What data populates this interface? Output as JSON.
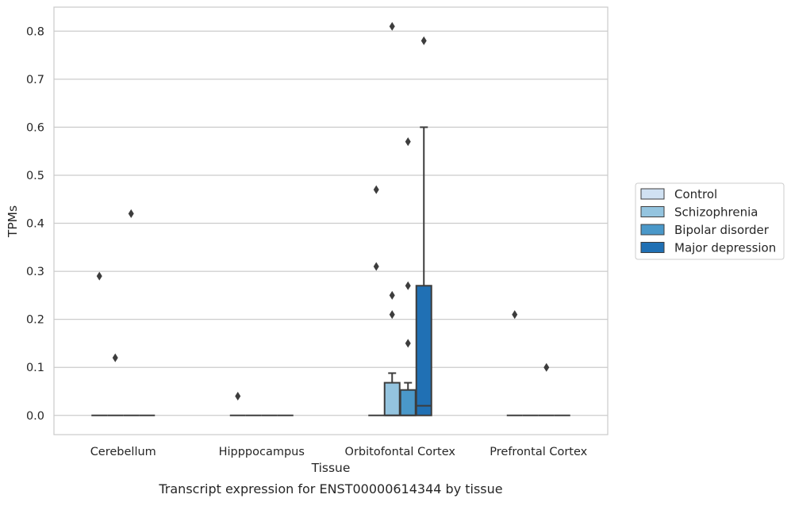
{
  "caption": "Transcript expression for ENST00000614344 by tissue",
  "chart_data": {
    "type": "box",
    "xlabel": "Tissue",
    "ylabel": "TPMs",
    "ylim": [
      -0.04,
      0.85
    ],
    "yticks": [
      0.0,
      0.1,
      0.2,
      0.3,
      0.4,
      0.5,
      0.6,
      0.7,
      0.8
    ],
    "ytick_labels": [
      "0.0",
      "0.1",
      "0.2",
      "0.3",
      "0.4",
      "0.5",
      "0.6",
      "0.7",
      "0.8"
    ],
    "categories": [
      "Cerebellum",
      "Hipppocampus",
      "Orbitofontal Cortex",
      "Prefrontal Cortex"
    ],
    "grid": "horizontal",
    "legend_position": "right",
    "legend": [
      "Control",
      "Schizophrenia",
      "Bipolar disorder",
      "Major depression"
    ],
    "colors": [
      "#d0e1f2",
      "#94c4df",
      "#4a98c9",
      "#2070b4"
    ],
    "edge_color": "#3d3d3d",
    "series": [
      {
        "name": "Control",
        "boxes": [
          {
            "q1": 0.0,
            "median": 0.0,
            "q3": 0.0,
            "whislo": 0.0,
            "whishi": 0.0,
            "fliers": [
              0.29
            ]
          },
          {
            "q1": 0.0,
            "median": 0.0,
            "q3": 0.0,
            "whislo": 0.0,
            "whishi": 0.0,
            "fliers": [
              0.04
            ]
          },
          {
            "q1": 0.0,
            "median": 0.0,
            "q3": 0.0,
            "whislo": 0.0,
            "whishi": 0.0,
            "fliers": [
              0.47,
              0.31
            ]
          },
          {
            "q1": 0.0,
            "median": 0.0,
            "q3": 0.0,
            "whislo": 0.0,
            "whishi": 0.0,
            "fliers": [
              0.21
            ]
          }
        ]
      },
      {
        "name": "Schizophrenia",
        "boxes": [
          {
            "q1": 0.0,
            "median": 0.0,
            "q3": 0.0,
            "whislo": 0.0,
            "whishi": 0.0,
            "fliers": [
              0.12
            ]
          },
          {
            "q1": 0.0,
            "median": 0.0,
            "q3": 0.0,
            "whislo": 0.0,
            "whishi": 0.0,
            "fliers": []
          },
          {
            "q1": 0.0,
            "median": 0.0,
            "q3": 0.068,
            "whislo": 0.0,
            "whishi": 0.088,
            "fliers": [
              0.81,
              0.25,
              0.21
            ]
          },
          {
            "q1": 0.0,
            "median": 0.0,
            "q3": 0.0,
            "whislo": 0.0,
            "whishi": 0.0,
            "fliers": []
          }
        ]
      },
      {
        "name": "Bipolar disorder",
        "boxes": [
          {
            "q1": 0.0,
            "median": 0.0,
            "q3": 0.0,
            "whislo": 0.0,
            "whishi": 0.0,
            "fliers": [
              0.42
            ]
          },
          {
            "q1": 0.0,
            "median": 0.0,
            "q3": 0.0,
            "whislo": 0.0,
            "whishi": 0.0,
            "fliers": []
          },
          {
            "q1": 0.0,
            "median": 0.0,
            "q3": 0.053,
            "whislo": 0.0,
            "whishi": 0.068,
            "fliers": [
              0.57,
              0.27,
              0.15
            ]
          },
          {
            "q1": 0.0,
            "median": 0.0,
            "q3": 0.0,
            "whislo": 0.0,
            "whishi": 0.0,
            "fliers": [
              0.1
            ]
          }
        ]
      },
      {
        "name": "Major depression",
        "boxes": [
          {
            "q1": 0.0,
            "median": 0.0,
            "q3": 0.0,
            "whislo": 0.0,
            "whishi": 0.0,
            "fliers": []
          },
          {
            "q1": 0.0,
            "median": 0.0,
            "q3": 0.0,
            "whislo": 0.0,
            "whishi": 0.0,
            "fliers": []
          },
          {
            "q1": 0.0,
            "median": 0.02,
            "q3": 0.27,
            "whislo": 0.0,
            "whishi": 0.6,
            "fliers": [
              0.78
            ]
          },
          {
            "q1": 0.0,
            "median": 0.0,
            "q3": 0.0,
            "whislo": 0.0,
            "whishi": 0.0,
            "fliers": []
          }
        ]
      }
    ]
  }
}
